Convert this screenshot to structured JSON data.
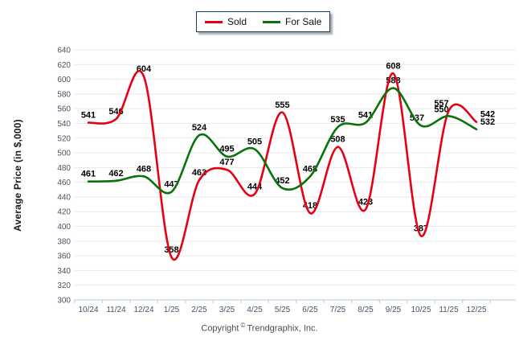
{
  "chart_data": {
    "type": "line",
    "title": "",
    "x": [
      "10/24",
      "11/24",
      "12/24",
      "1/25",
      "2/25",
      "3/25",
      "4/25",
      "5/25",
      "6/25",
      "7/25",
      "8/25",
      "9/25",
      "10/25",
      "11/25",
      "12/25"
    ],
    "series": [
      {
        "name": "Sold",
        "color": "#e60012",
        "values": [
          541,
          546,
          604,
          358,
          463,
          477,
          444,
          555,
          418,
          508,
          423,
          608,
          387,
          557,
          542
        ]
      },
      {
        "name": "For Sale",
        "color": "#0a720a",
        "values": [
          461,
          462,
          468,
          447,
          524,
          495,
          505,
          452,
          468,
          535,
          541,
          588,
          537,
          550,
          532
        ]
      }
    ],
    "xlabel": "",
    "ylabel": "Average Price (in $,000)",
    "ylim": [
      300,
      640
    ],
    "ytick_step": 20,
    "grid": true,
    "legend_position": "top-center",
    "colors": {
      "grid": "#e9e9e9",
      "axis": "#b6c7d6",
      "tick_label": "#44546a",
      "data_label": "#000000",
      "legend_border": "#1b3a63"
    }
  },
  "footer": {
    "copyright_prefix": "Copyright",
    "copyright_symbol": "©",
    "copyright_suffix": "Trendgraphix, Inc."
  }
}
